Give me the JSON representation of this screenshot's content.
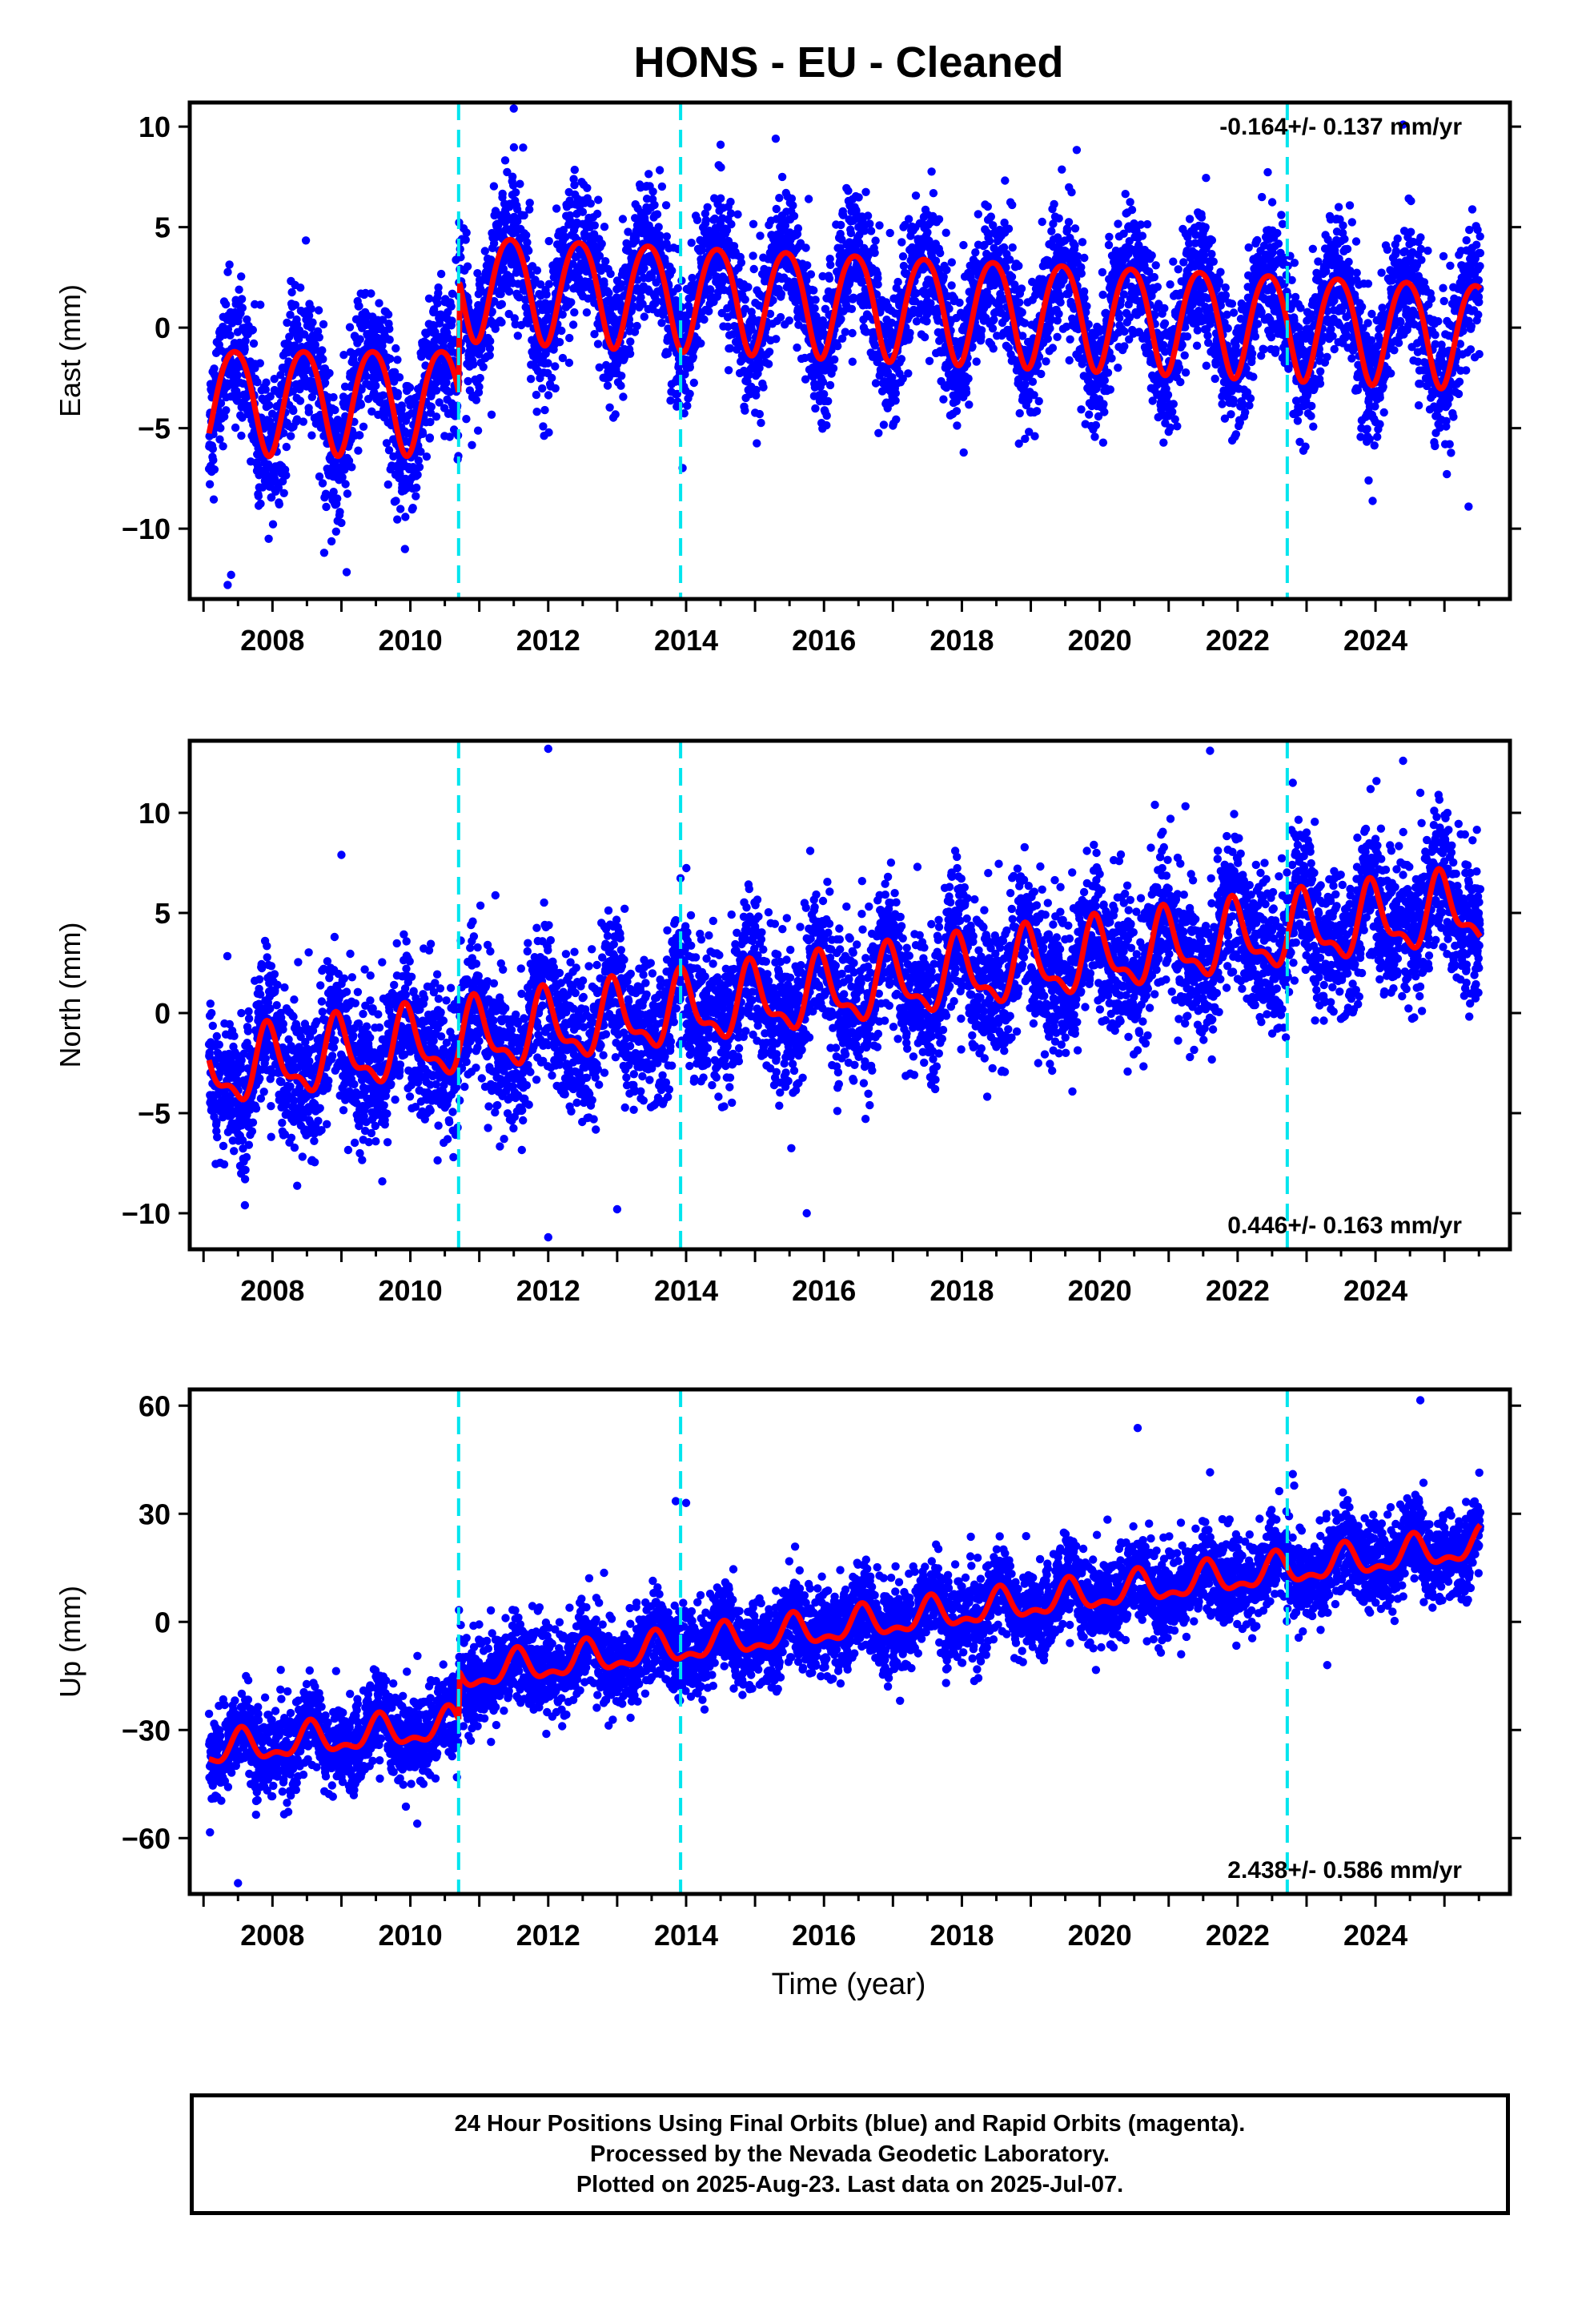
{
  "title": "HONS  - EU - Cleaned",
  "xlabel": "Time (year)",
  "footer": {
    "line1": "24 Hour Positions Using Final Orbits (blue) and Rapid Orbits (magenta).",
    "line2": "Processed by the Nevada Geodetic Laboratory.",
    "line3": "Plotted on 2025-Aug-23. Last data on 2025-Jul-07."
  },
  "colors": {
    "points": "#0000ff",
    "model": "#ff0000",
    "breaks": "#00e5ee",
    "frame": "#000000"
  },
  "chart_data": [
    {
      "type": "scatter",
      "ylabel": "East (mm)",
      "rate_label": "-0.164+/- 0.137 mm/yr",
      "rate_position": "top-right",
      "xlim": [
        2006.8,
        2025.95
      ],
      "ylim": [
        -13.5,
        11.2
      ],
      "yticks": [
        10,
        5,
        0,
        -5,
        -10
      ],
      "xticks": [
        2008,
        2010,
        2012,
        2014,
        2016,
        2018,
        2020,
        2022,
        2024
      ],
      "breaks": [
        2010.7,
        2013.92,
        2022.72
      ],
      "data_range": [
        2007.08,
        2025.52
      ],
      "model": {
        "segments": [
          {
            "from": 2007.08,
            "to": 2010.7,
            "offset": -3.5,
            "rate": 0.0,
            "amp_annual": 2.6,
            "phase_annual": 2007.45,
            "amp_semi": 0.3,
            "phase_semi": 2007.2
          },
          {
            "from": 2010.7,
            "to": 2025.52,
            "offset": 2.2,
            "rate": -0.164,
            "ref": 2010.7,
            "amp_annual": 2.6,
            "phase_annual": 2011.45,
            "amp_semi": 0.3,
            "phase_semi": 2011.2
          }
        ]
      },
      "scatter_sd": 1.7,
      "outliers": [
        {
          "x": 2011.5,
          "y": 10.9
        },
        {
          "x": 2007.35,
          "y": -12.8
        },
        {
          "x": 2007.4,
          "y": -12.3
        },
        {
          "x": 2015.3,
          "y": 9.4
        },
        {
          "x": 2014.5,
          "y": 9.1
        },
        {
          "x": 2024.4,
          "y": 10.1
        },
        {
          "x": 2008.75,
          "y": -11.2
        },
        {
          "x": 2025.35,
          "y": -8.9
        },
        {
          "x": 2023.9,
          "y": -7.6
        }
      ]
    },
    {
      "type": "scatter",
      "ylabel": "North (mm)",
      "rate_label": "0.446+/- 0.163 mm/yr",
      "rate_position": "bottom-right",
      "xlim": [
        2006.8,
        2025.95
      ],
      "ylim": [
        -11.8,
        13.6
      ],
      "yticks": [
        10,
        5,
        0,
        -5,
        -10
      ],
      "xticks": [
        2008,
        2010,
        2012,
        2014,
        2016,
        2018,
        2020,
        2022,
        2024
      ],
      "breaks": [
        2010.7,
        2013.92,
        2022.72
      ],
      "data_range": [
        2007.08,
        2025.52
      ],
      "model": {
        "segments": [
          {
            "from": 2007.08,
            "to": 2025.52,
            "offset": -3.0,
            "rate": 0.446,
            "ref": 2007.08,
            "amp_annual": 1.6,
            "phase_annual": 2007.95,
            "amp_semi": 0.7,
            "phase_semi": 2007.9
          }
        ]
      },
      "scatter_sd": 1.8,
      "outliers": [
        {
          "x": 2012.0,
          "y": 13.2
        },
        {
          "x": 2021.6,
          "y": 13.1
        },
        {
          "x": 2024.4,
          "y": 12.6
        },
        {
          "x": 2022.8,
          "y": 11.5
        },
        {
          "x": 2020.8,
          "y": 10.4
        },
        {
          "x": 2024.65,
          "y": 11.0
        },
        {
          "x": 2012.0,
          "y": -11.2
        },
        {
          "x": 2015.75,
          "y": -10.0
        },
        {
          "x": 2007.6,
          "y": -9.6
        },
        {
          "x": 2013.0,
          "y": -9.8
        },
        {
          "x": 2009.0,
          "y": 7.9
        },
        {
          "x": 2015.8,
          "y": 8.1
        }
      ]
    },
    {
      "type": "scatter",
      "ylabel": "Up (mm)",
      "rate_label": "2.438+/- 0.586 mm/yr",
      "rate_position": "bottom-right",
      "xlim": [
        2006.8,
        2025.95
      ],
      "ylim": [
        -75.5,
        64.5
      ],
      "yticks": [
        60,
        30,
        0,
        -30,
        -60
      ],
      "xticks": [
        2008,
        2010,
        2012,
        2014,
        2016,
        2018,
        2020,
        2022,
        2024
      ],
      "breaks": [
        2010.7,
        2013.92,
        2022.72
      ],
      "data_range": [
        2007.08,
        2025.52
      ],
      "model": {
        "segments": [
          {
            "from": 2007.08,
            "to": 2010.7,
            "offset": -36.0,
            "rate": 2.0,
            "ref": 2007.08,
            "amp_annual": 4.0,
            "phase_annual": 2007.55,
            "amp_semi": 2.0,
            "phase_semi": 2007.55
          },
          {
            "from": 2010.7,
            "to": 2025.52,
            "offset": -15.0,
            "rate": 2.438,
            "ref": 2010.7,
            "amp_annual": 4.0,
            "phase_annual": 2011.55,
            "amp_semi": 2.0,
            "phase_semi": 2011.55
          }
        ]
      },
      "scatter_sd": 6.0,
      "outliers": [
        {
          "x": 2007.5,
          "y": -72.5
        },
        {
          "x": 2024.65,
          "y": 61.5
        },
        {
          "x": 2020.55,
          "y": 53.8
        },
        {
          "x": 2014.0,
          "y": 33.0
        },
        {
          "x": 2010.1,
          "y": -56.0
        },
        {
          "x": 2022.8,
          "y": 41.0
        },
        {
          "x": 2021.6,
          "y": 41.5
        },
        {
          "x": 2023.3,
          "y": -12.0
        },
        {
          "x": 2013.85,
          "y": 33.5
        }
      ]
    }
  ]
}
